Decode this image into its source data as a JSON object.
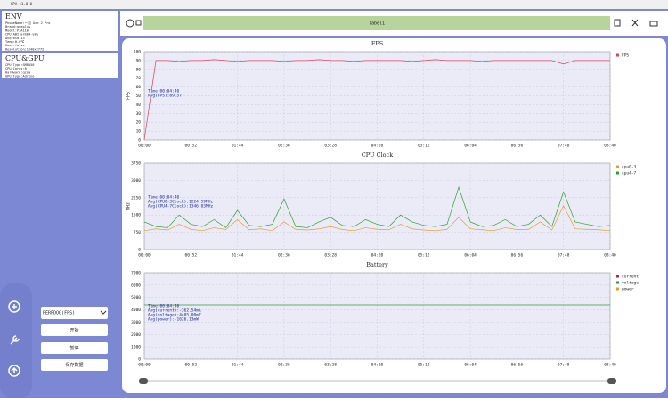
{
  "window_title": "KPA-v1.0.0",
  "env": {
    "title": "ENV",
    "lines": [
      "PhoneName:一加 Ace 2 Pro",
      "Brand:oneplus",
      "Model:PJA110",
      "CPU ABI:arm64-v8a",
      "Android:13",
      "Temp:0.0℃",
      "Root:false",
      "Resolution:1240x2772"
    ]
  },
  "cpu_gpu": {
    "title": "CPU&GPU",
    "lines": [
      "CPU Type:SM8550",
      "CPU Cores:8",
      "Hardware:qcom",
      "GPU Type:Adreno"
    ]
  },
  "label": "label1",
  "mode_select": "PERFDOG(FPS)",
  "buttons": [
    "开始",
    "暂停",
    "保存数据"
  ],
  "chart_data": [
    {
      "type": "line",
      "title": "FPS",
      "y_label": "FPS",
      "grid": true,
      "legend": "upper right",
      "x": [
        0,
        13,
        26,
        39,
        52,
        65,
        78,
        91,
        104,
        117,
        130,
        143,
        156,
        169,
        182,
        195,
        208,
        221,
        234,
        247,
        260,
        273,
        286,
        299,
        312,
        325,
        338,
        351,
        364,
        377,
        390,
        403,
        416,
        429,
        442,
        455,
        468,
        481,
        494,
        507,
        520
      ],
      "xlim": [
        0,
        520
      ],
      "xticks": [
        {
          "value": 0,
          "label": "00:00"
        },
        {
          "value": 52,
          "label": "00:52"
        },
        {
          "value": 104,
          "label": "01:44"
        },
        {
          "value": 156,
          "label": "02:36"
        },
        {
          "value": 208,
          "label": "03:28"
        },
        {
          "value": 260,
          "label": "04:20"
        },
        {
          "value": 312,
          "label": "05:12"
        },
        {
          "value": 364,
          "label": "06:04"
        },
        {
          "value": 416,
          "label": "06:56"
        },
        {
          "value": 468,
          "label": "07:48"
        },
        {
          "value": 520,
          "label": "08:40"
        }
      ],
      "ylim": [
        0,
        100
      ],
      "yticks": [
        0,
        10,
        20,
        30,
        40,
        50,
        60,
        70,
        80,
        90,
        100
      ],
      "annotations": [
        "Time:00:04:40",
        "Avg(FPS):89.57"
      ],
      "series": [
        {
          "name": "FPS",
          "color": "#d9465a",
          "values": [
            0,
            90,
            90,
            89,
            90,
            90,
            91,
            90,
            89,
            90,
            90,
            90,
            89,
            90,
            90,
            91,
            90,
            90,
            89,
            90,
            90,
            90,
            90,
            89,
            90,
            91,
            90,
            90,
            90,
            89,
            90,
            90,
            90,
            90,
            90,
            90,
            86,
            90,
            90,
            90,
            90
          ]
        }
      ]
    },
    {
      "type": "line",
      "title": "CPU Clock",
      "y_label": "MHz",
      "grid": true,
      "legend": "upper right",
      "x": [
        0,
        13,
        26,
        39,
        52,
        65,
        78,
        91,
        104,
        117,
        130,
        143,
        156,
        169,
        182,
        195,
        208,
        221,
        234,
        247,
        260,
        273,
        286,
        299,
        312,
        325,
        338,
        351,
        364,
        377,
        390,
        403,
        416,
        429,
        442,
        455,
        468,
        481,
        494,
        507,
        520
      ],
      "xlim": [
        0,
        520
      ],
      "xticks": [
        {
          "value": 0,
          "label": "00:00"
        },
        {
          "value": 52,
          "label": "00:52"
        },
        {
          "value": 104,
          "label": "01:44"
        },
        {
          "value": 156,
          "label": "02:36"
        },
        {
          "value": 208,
          "label": "03:28"
        },
        {
          "value": 260,
          "label": "04:20"
        },
        {
          "value": 312,
          "label": "05:12"
        },
        {
          "value": 364,
          "label": "06:04"
        },
        {
          "value": 416,
          "label": "06:56"
        },
        {
          "value": 468,
          "label": "07:48"
        },
        {
          "value": 520,
          "label": "08:40"
        }
      ],
      "ylim": [
        0,
        3750
      ],
      "yticks": [
        0,
        750,
        1500,
        2250,
        3000,
        3750
      ],
      "annotations": [
        "Time:00:04:40",
        "Avg(CPU0-3Clock):1224.59MHz",
        "Avg(CPU4-7Clock):1346.83MHz"
      ],
      "series": [
        {
          "name": "cpu0-3",
          "color": "#e0a030",
          "values": [
            820,
            900,
            850,
            1100,
            880,
            820,
            950,
            870,
            1300,
            860,
            900,
            820,
            1200,
            880,
            850,
            900,
            1000,
            870,
            820,
            950,
            880,
            860,
            1100,
            900,
            850,
            820,
            880,
            1400,
            900,
            860,
            820,
            950,
            870,
            880,
            1200,
            850,
            1900,
            900,
            880,
            860,
            820
          ]
        },
        {
          "name": "cpu4-7",
          "color": "#2ca02c",
          "values": [
            1200,
            1000,
            950,
            1500,
            1100,
            1000,
            1300,
            950,
            1700,
            1050,
            1000,
            1100,
            2200,
            1000,
            950,
            1200,
            1400,
            1050,
            1000,
            1300,
            1100,
            1000,
            1500,
            1200,
            1050,
            1000,
            1100,
            2700,
            1200,
            1000,
            1050,
            1300,
            1000,
            1100,
            1500,
            1000,
            2500,
            1200,
            1100,
            1000,
            1050
          ]
        }
      ]
    },
    {
      "type": "line",
      "title": "Battery",
      "grid": true,
      "legend": "upper right",
      "x": [
        0,
        13,
        26,
        39,
        52,
        65,
        78,
        91,
        104,
        117,
        130,
        143,
        156,
        169,
        182,
        195,
        208,
        221,
        234,
        247,
        260,
        273,
        286,
        299,
        312,
        325,
        338,
        351,
        364,
        377,
        390,
        403,
        416,
        429,
        442,
        455,
        468,
        481,
        494,
        507,
        520
      ],
      "xlim": [
        0,
        520
      ],
      "xticks": [
        {
          "value": 0,
          "label": "00:00"
        },
        {
          "value": 52,
          "label": "00:52"
        },
        {
          "value": 104,
          "label": "01:44"
        },
        {
          "value": 156,
          "label": "02:36"
        },
        {
          "value": 208,
          "label": "03:28"
        },
        {
          "value": 260,
          "label": "04:20"
        },
        {
          "value": 312,
          "label": "05:12"
        },
        {
          "value": 364,
          "label": "06:04"
        },
        {
          "value": 416,
          "label": "06:56"
        },
        {
          "value": 468,
          "label": "07:48"
        },
        {
          "value": 520,
          "label": "08:40"
        }
      ],
      "ylim": [
        0,
        7000
      ],
      "yticks": [
        0,
        1000,
        2000,
        3000,
        4000,
        5000,
        6000,
        7000
      ],
      "annotations": [
        "Time:00:04:40",
        "Avg(current):-362.54mA",
        "Avg(voltage):4405.00mV",
        "Avg(power):-1626.13mW"
      ],
      "series": [
        {
          "name": "current",
          "color": "#c2185b",
          "values": [
            null,
            null,
            null,
            null,
            null,
            null,
            null,
            null,
            null,
            null,
            null,
            null,
            null,
            null,
            null,
            null,
            null,
            null,
            null,
            null,
            null,
            null,
            null,
            null,
            null,
            null,
            null,
            null,
            null,
            null,
            null,
            null,
            null,
            null,
            null,
            null,
            null,
            null,
            null,
            null,
            null
          ]
        },
        {
          "name": "voltage",
          "color": "#2ca02c",
          "values": [
            4400,
            4400,
            4400,
            4400,
            4400,
            4400,
            4400,
            4400,
            4400,
            4400,
            4400,
            4400,
            4400,
            4400,
            4400,
            4400,
            4400,
            4400,
            4400,
            4400,
            4400,
            4400,
            4400,
            4400,
            4400,
            4400,
            4400,
            4400,
            4400,
            4400,
            4400,
            4400,
            4400,
            4400,
            4400,
            4400,
            4400,
            4400,
            4400,
            4400,
            4400
          ]
        },
        {
          "name": "power",
          "color": "#e0a030",
          "values": [
            null,
            null,
            null,
            null,
            null,
            null,
            null,
            null,
            null,
            null,
            null,
            null,
            null,
            null,
            null,
            null,
            null,
            null,
            null,
            null,
            null,
            null,
            null,
            null,
            null,
            null,
            null,
            null,
            null,
            null,
            null,
            null,
            null,
            null,
            null,
            null,
            null,
            null,
            null,
            null,
            null
          ]
        }
      ]
    }
  ]
}
